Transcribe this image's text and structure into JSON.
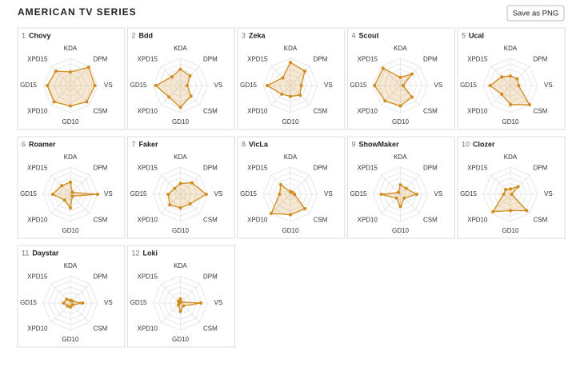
{
  "header": {
    "title": "AMERICAN TV SERIES",
    "button": "Save as PNG"
  },
  "chart_data": [
    {
      "type": "radar",
      "rank": 1,
      "title": "Chovy",
      "categories": [
        "KDA",
        "DPM",
        "VS",
        "CSM",
        "GD10",
        "XPD10",
        "GD15",
        "XPD15"
      ],
      "values": [
        50,
        95,
        90,
        85,
        75,
        85,
        85,
        75
      ],
      "color": "#d18b1c",
      "rlim": [
        0,
        100
      ],
      "rticks": [
        20,
        40,
        60,
        80,
        100
      ]
    },
    {
      "type": "radar",
      "rank": 2,
      "title": "Bdd",
      "categories": [
        "KDA",
        "DPM",
        "VS",
        "CSM",
        "GD10",
        "XPD10",
        "GD15",
        "XPD15"
      ],
      "values": [
        60,
        50,
        25,
        55,
        80,
        60,
        90,
        45
      ],
      "color": "#d18b1c",
      "rlim": [
        0,
        100
      ],
      "rticks": [
        20,
        40,
        60,
        80,
        100
      ]
    },
    {
      "type": "radar",
      "rank": 3,
      "title": "Zeka",
      "categories": [
        "KDA",
        "DPM",
        "VS",
        "CSM",
        "GD10",
        "XPD10",
        "GD15",
        "XPD15"
      ],
      "values": [
        85,
        75,
        40,
        50,
        40,
        45,
        85,
        40
      ],
      "color": "#d18b1c",
      "rlim": [
        0,
        100
      ],
      "rticks": [
        20,
        40,
        60,
        80,
        100
      ]
    },
    {
      "type": "radar",
      "rank": 4,
      "title": "Scout",
      "categories": [
        "KDA",
        "DPM",
        "VS",
        "CSM",
        "GD10",
        "XPD10",
        "GD15",
        "XPD15"
      ],
      "values": [
        30,
        60,
        10,
        60,
        75,
        80,
        95,
        90
      ],
      "color": "#d18b1c",
      "rlim": [
        0,
        100
      ],
      "rticks": [
        20,
        40,
        60,
        80,
        100
      ]
    },
    {
      "type": "radar",
      "rank": 5,
      "title": "Ucal",
      "categories": [
        "KDA",
        "DPM",
        "VS",
        "CSM",
        "GD10",
        "XPD10",
        "GD15",
        "XPD15"
      ],
      "values": [
        35,
        35,
        30,
        100,
        70,
        45,
        75,
        45
      ],
      "color": "#d18b1c",
      "rlim": [
        0,
        100
      ],
      "rticks": [
        20,
        40,
        60,
        80,
        100
      ]
    },
    {
      "type": "radar",
      "rank": 6,
      "title": "Roamer",
      "categories": [
        "KDA",
        "DPM",
        "VS",
        "CSM",
        "GD10",
        "XPD10",
        "GD15",
        "XPD15"
      ],
      "values": [
        45,
        10,
        100,
        10,
        50,
        30,
        65,
        45
      ],
      "color": "#d18b1c",
      "rlim": [
        0,
        100
      ],
      "rticks": [
        20,
        40,
        60,
        80,
        100
      ]
    },
    {
      "type": "radar",
      "rank": 7,
      "title": "Faker",
      "categories": [
        "KDA",
        "DPM",
        "VS",
        "CSM",
        "GD10",
        "XPD10",
        "GD15",
        "XPD15"
      ],
      "values": [
        40,
        60,
        95,
        50,
        50,
        55,
        45,
        30
      ],
      "color": "#d18b1c",
      "rlim": [
        0,
        100
      ],
      "rticks": [
        20,
        40,
        60,
        80,
        100
      ]
    },
    {
      "type": "radar",
      "rank": 8,
      "title": "VicLa",
      "categories": [
        "KDA",
        "DPM",
        "VS",
        "CSM",
        "GD10",
        "XPD10",
        "GD15",
        "XPD15"
      ],
      "values": [
        10,
        10,
        15,
        75,
        75,
        100,
        40,
        50
      ],
      "color": "#d18b1c",
      "rlim": [
        0,
        100
      ],
      "rticks": [
        20,
        40,
        60,
        80,
        100
      ]
    },
    {
      "type": "radar",
      "rank": 9,
      "title": "ShowMaker",
      "categories": [
        "KDA",
        "DPM",
        "VS",
        "CSM",
        "GD10",
        "XPD10",
        "GD15",
        "XPD15"
      ],
      "values": [
        35,
        30,
        60,
        20,
        45,
        20,
        70,
        10
      ],
      "color": "#d18b1c",
      "rlim": [
        0,
        100
      ],
      "rticks": [
        20,
        40,
        60,
        80,
        100
      ]
    },
    {
      "type": "radar",
      "rank": 10,
      "title": "Clozer",
      "categories": [
        "KDA",
        "DPM",
        "VS",
        "CSM",
        "GD10",
        "XPD10",
        "GD15",
        "XPD15"
      ],
      "values": [
        20,
        40,
        5,
        85,
        60,
        90,
        25,
        25
      ],
      "color": "#d18b1c",
      "rlim": [
        0,
        100
      ],
      "rticks": [
        20,
        40,
        60,
        80,
        100
      ]
    },
    {
      "type": "radar",
      "rank": 11,
      "title": "Daystar",
      "categories": [
        "KDA",
        "DPM",
        "VS",
        "CSM",
        "GD10",
        "XPD10",
        "GD15",
        "XPD15"
      ],
      "values": [
        10,
        10,
        45,
        10,
        15,
        15,
        25,
        20
      ],
      "color": "#d18b1c",
      "rlim": [
        0,
        100
      ],
      "rticks": [
        20,
        40,
        60,
        80,
        100
      ]
    },
    {
      "type": "radar",
      "rank": 12,
      "title": "Loki",
      "categories": [
        "KDA",
        "DPM",
        "VS",
        "CSM",
        "GD10",
        "XPD10",
        "GD15",
        "XPD15"
      ],
      "values": [
        15,
        5,
        75,
        15,
        30,
        10,
        5,
        10
      ],
      "color": "#d18b1c",
      "rlim": [
        0,
        100
      ],
      "rticks": [
        20,
        40,
        60,
        80,
        100
      ]
    }
  ]
}
